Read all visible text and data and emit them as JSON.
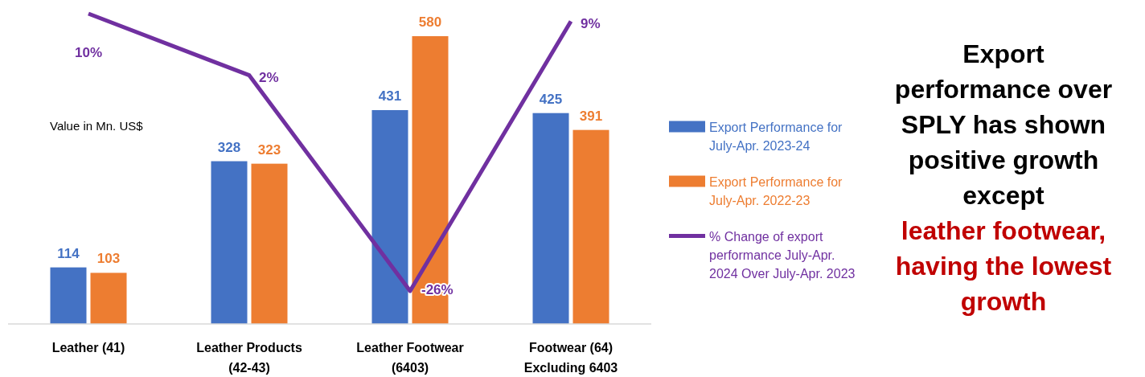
{
  "chart_data": {
    "type": "bar",
    "categories": [
      "Leather (41)",
      "Leather Products (42-43)",
      "Leather Footwear (6403)",
      "Footwear (64) Excluding 6403"
    ],
    "series": [
      {
        "name": "Export Performance for July-Apr. 2023-24",
        "color": "#4472c4",
        "values": [
          114,
          328,
          431,
          425
        ]
      },
      {
        "name": "Export Performance for July-Apr. 2022-23",
        "color": "#ed7d31",
        "values": [
          103,
          323,
          580,
          391
        ]
      },
      {
        "name": "% Change of export performance July-Apr. 2024 Over July-Apr. 2023",
        "color": "#7030a0",
        "type": "line",
        "axis": "y2",
        "values": [
          10,
          2,
          -26,
          9
        ],
        "value_labels": [
          "10%",
          "2%",
          "-26%",
          "9%"
        ]
      }
    ],
    "data_labels": true,
    "legend": "right",
    "marker": "none",
    "annotations": [
      "Value in Mn. US$",
      "Export performance over SPLY has shown positive growth except",
      "leather footwear, having the lowest growth"
    ]
  }
}
